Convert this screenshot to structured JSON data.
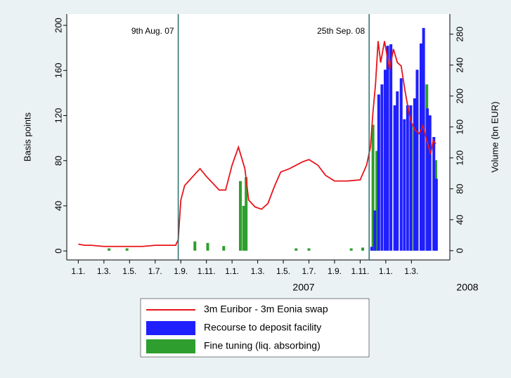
{
  "chart_data": {
    "type": "line",
    "ylabel": "Basis points",
    "y2label": "Volume (bn EUR)",
    "xlim": [
      -0.9,
      29
    ],
    "xticks": [
      {
        "value": 0,
        "label": "1.1."
      },
      {
        "value": 2,
        "label": "1.3."
      },
      {
        "value": 4,
        "label": "1.5."
      },
      {
        "value": 6,
        "label": "1.7."
      },
      {
        "value": 8,
        "label": "1.9."
      },
      {
        "value": 10,
        "label": "1.11."
      },
      {
        "value": 12,
        "label": "1.1."
      },
      {
        "value": 14,
        "label": "1.3."
      },
      {
        "value": 16,
        "label": "1.5."
      },
      {
        "value": 18,
        "label": "1.7."
      },
      {
        "value": 20,
        "label": "1.9."
      },
      {
        "value": 22,
        "label": "1.11."
      },
      {
        "value": 24,
        "label": "1.1."
      },
      {
        "value": 26,
        "label": "1.3."
      }
    ],
    "year_labels": [
      "2007",
      "2008"
    ],
    "ylim": [
      -8,
      210
    ],
    "yticks": [
      0,
      40,
      80,
      120,
      160,
      200
    ],
    "y2lim": [
      -12,
      306
    ],
    "y2ticks": [
      0,
      40,
      80,
      120,
      160,
      200,
      240,
      280
    ],
    "events": [
      {
        "x": 7.8,
        "label": "9th Aug. 07"
      },
      {
        "x": 22.7,
        "label": "25th Sep. 08"
      }
    ],
    "series": [
      {
        "name": "Fine tuning (liq. absorbing)",
        "color": "#2e9e2e",
        "type": "bar",
        "axis": "y2",
        "x": [
          2.4,
          3.8,
          9.1,
          10.1,
          11.35,
          12.65,
          12.9,
          13.1,
          17,
          18,
          21.3,
          22.2,
          23.0,
          23.3,
          26,
          27.2,
          27.9
        ],
        "values": [
          3,
          3,
          12,
          10,
          6,
          90,
          58,
          95,
          3,
          3,
          3,
          4,
          163,
          129,
          161,
          215,
          117
        ]
      },
      {
        "name": "Recourse to deposit facility",
        "color": "#1f1fff",
        "type": "bar",
        "axis": "y2",
        "x": [
          22.9,
          23.15,
          23.45,
          23.7,
          23.95,
          24.15,
          24.4,
          24.7,
          24.9,
          25.2,
          25.45,
          25.7,
          25.95,
          26.25,
          26.45,
          26.75,
          26.95,
          27.25,
          27.45,
          27.75,
          27.95
        ],
        "values": [
          5,
          52,
          202,
          215,
          234,
          265,
          267,
          188,
          206,
          223,
          170,
          188,
          188,
          197,
          234,
          268,
          288,
          184,
          175,
          147,
          93
        ]
      },
      {
        "name": "3m Euribor - 3m Eonia swap",
        "color": "#e8141a",
        "type": "line",
        "axis": "y",
        "x": [
          0,
          0.5,
          1,
          2,
          3,
          4,
          5,
          6,
          7,
          7.6,
          7.8,
          8.0,
          8.3,
          9.5,
          10,
          11,
          11.5,
          12,
          12.5,
          13,
          13.3,
          13.8,
          14.3,
          14.8,
          15.3,
          15.8,
          16.5,
          17.5,
          18,
          18.7,
          19.3,
          20,
          21,
          22,
          22.5,
          22.8,
          23,
          23.2,
          23.4,
          23.6,
          23.9,
          24.1,
          24.3,
          24.6,
          24.9,
          25.2,
          25.5,
          25.8,
          26,
          26.3,
          26.6,
          26.9,
          27.2,
          27.5,
          27.7,
          27.9
        ],
        "values": [
          6,
          5,
          5,
          4,
          4,
          4,
          4,
          5,
          5,
          5,
          10,
          45,
          58,
          73,
          66,
          54,
          54,
          76,
          92,
          73,
          45,
          39,
          37,
          42,
          57,
          70,
          73,
          79,
          81,
          76,
          67,
          62,
          62,
          63,
          76,
          92,
          123,
          148,
          186,
          167,
          186,
          173,
          161,
          179,
          167,
          164,
          142,
          123,
          114,
          107,
          104,
          111,
          98,
          86,
          98,
          95
        ]
      }
    ]
  }
}
